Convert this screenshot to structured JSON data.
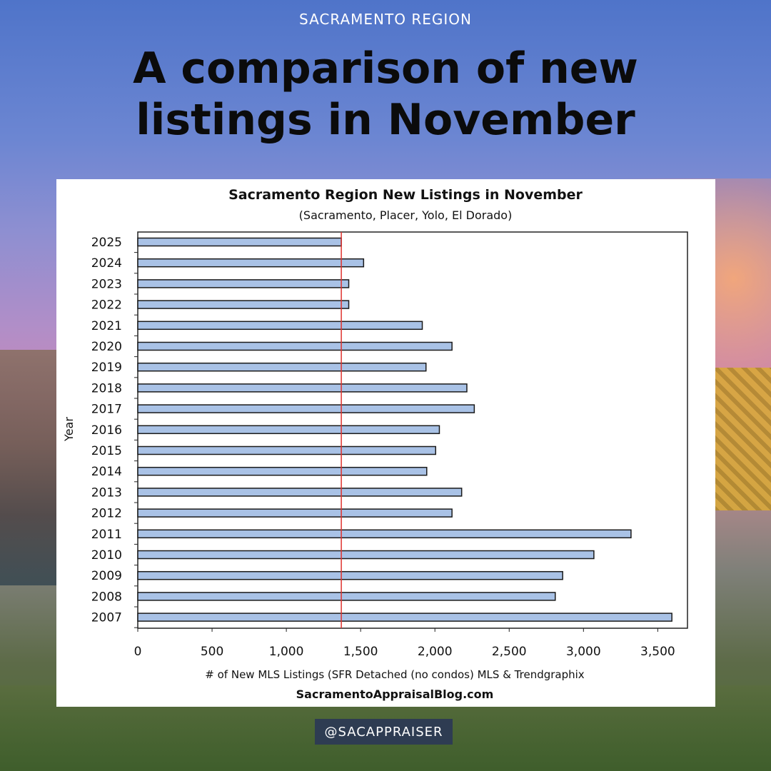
{
  "header": {
    "region_label": "SACRAMENTO REGION",
    "headline_line1": "A comparison of new",
    "headline_line2": "listings in November"
  },
  "handle": "@SACAPPRAISER",
  "colors": {
    "bar_fill": "#a9c2e6",
    "bar_stroke": "#1a1a1a",
    "reference_line": "#e0332f",
    "badge_bg": "#2e3c52"
  },
  "chart_data": {
    "type": "bar",
    "orientation": "horizontal",
    "title": "Sacramento Region New Listings in November",
    "subtitle": "(Sacramento, Placer, Yolo, El Dorado)",
    "ylabel": "Year",
    "xlabel": "# of New MLS Listings (SFR Detached (no condos) MLS & Trendgraphix",
    "source": "SacramentoAppraisalBlog.com",
    "categories": [
      "2025",
      "2024",
      "2023",
      "2022",
      "2021",
      "2020",
      "2019",
      "2018",
      "2017",
      "2016",
      "2015",
      "2014",
      "2013",
      "2012",
      "2011",
      "2010",
      "2009",
      "2008",
      "2007"
    ],
    "values": [
      1370,
      1520,
      1420,
      1420,
      1915,
      2115,
      1940,
      2215,
      2265,
      2030,
      2005,
      1945,
      2180,
      2115,
      3320,
      3070,
      2860,
      2810,
      3595
    ],
    "reference_line": {
      "value": 1370
    },
    "xlim": [
      0,
      3700
    ],
    "xticks": [
      0,
      500,
      1000,
      1500,
      2000,
      2500,
      3000,
      3500
    ],
    "xtick_labels": [
      "0",
      "500",
      "1,000",
      "1,500",
      "2,000",
      "2,500",
      "3,000",
      "3,500"
    ],
    "grid": false,
    "legend": "none"
  }
}
